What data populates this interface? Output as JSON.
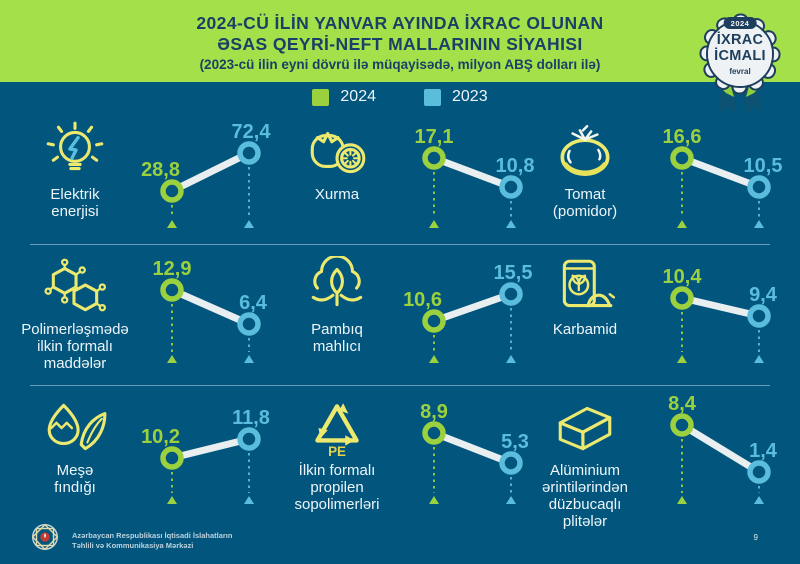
{
  "header": {
    "title_line1": "2024-CÜ İLİN YANVAR AYINDA İXRAC OLUNAN",
    "title_line2": "ƏSAS QEYRİ-NEFT MALLARININ SİYAHISI",
    "title_line3": "(2023-cü ilin eyni dövrü ilə müqayisədə, milyon ABŞ dolları ilə)"
  },
  "badge": {
    "year": "2024",
    "title_line1": "İXRAC",
    "title_line2": "İCMALI",
    "subtitle": "fevral"
  },
  "legend": [
    {
      "label": "2024",
      "color": "#9bd13f"
    },
    {
      "label": "2023",
      "color": "#5bbddc"
    }
  ],
  "colors": {
    "background": "#02567d",
    "header_green": "#a3e04a",
    "title_navy": "#1a4066",
    "accent_2024": "#9bd13f",
    "accent_2023": "#5bbddc",
    "icon_yellow": "#ece96e",
    "connector": "#e9eef1"
  },
  "chart_data": {
    "type": "line",
    "subtype": "slope-mini-multiples",
    "title": "2024-cü ilin yanvar ayında ixrac olunan əsas qeyri-neft mallarının siyahısı",
    "unit": "milyon ABŞ dolları ilə",
    "series_labels": [
      "2024",
      "2023"
    ],
    "items": [
      {
        "label": "Elektrik\nenerjisi",
        "icon": "light-bulb-icon",
        "value_2024": 28.8,
        "value_2023": 72.4,
        "label_2024": "28,8",
        "label_2023": "72,4"
      },
      {
        "label": "Xurma",
        "icon": "persimmon-icon",
        "value_2024": 17.1,
        "value_2023": 10.8,
        "label_2024": "17,1",
        "label_2023": "10,8"
      },
      {
        "label": "Tomat\n(pomidor)",
        "icon": "tomato-icon",
        "value_2024": 16.6,
        "value_2023": 10.5,
        "label_2024": "16,6",
        "label_2023": "10,5"
      },
      {
        "label": "Polimerləşmədə\nilkin formalı\nmaddələr",
        "icon": "molecule-icon",
        "value_2024": 12.9,
        "value_2023": 6.4,
        "label_2024": "12,9",
        "label_2023": "6,4"
      },
      {
        "label": "Pambıq\nmahlıcı",
        "icon": "cotton-icon",
        "value_2024": 10.6,
        "value_2023": 15.5,
        "label_2024": "10,6",
        "label_2023": "15,5"
      },
      {
        "label": "Karbamid",
        "icon": "fertilizer-bag-icon",
        "value_2024": 10.4,
        "value_2023": 9.4,
        "label_2024": "10,4",
        "label_2023": "9,4"
      },
      {
        "label": "Meşə\nfındığı",
        "icon": "hazelnut-icon",
        "value_2024": 10.2,
        "value_2023": 11.8,
        "label_2024": "10,2",
        "label_2023": "11,8"
      },
      {
        "label": "İlkin formalı\npropilen\nsopolimerləri",
        "icon": "recycle-pe-icon",
        "icon_label": "PE",
        "value_2024": 8.9,
        "value_2023": 5.3,
        "label_2024": "8,9",
        "label_2023": "5,3"
      },
      {
        "label": "Alüminium\nərintilərindən\ndüzbucaqlı\nplitələr",
        "icon": "aluminum-plate-icon",
        "value_2024": 8.4,
        "value_2023": 1.4,
        "label_2024": "8,4",
        "label_2023": "1,4"
      }
    ]
  },
  "footer": {
    "org_line1": "Azərbaycan Respublikası İqtisadi İslahatların",
    "org_line2": "Təhlili və Kommunikasiya Mərkəzi",
    "page_number": "9"
  }
}
